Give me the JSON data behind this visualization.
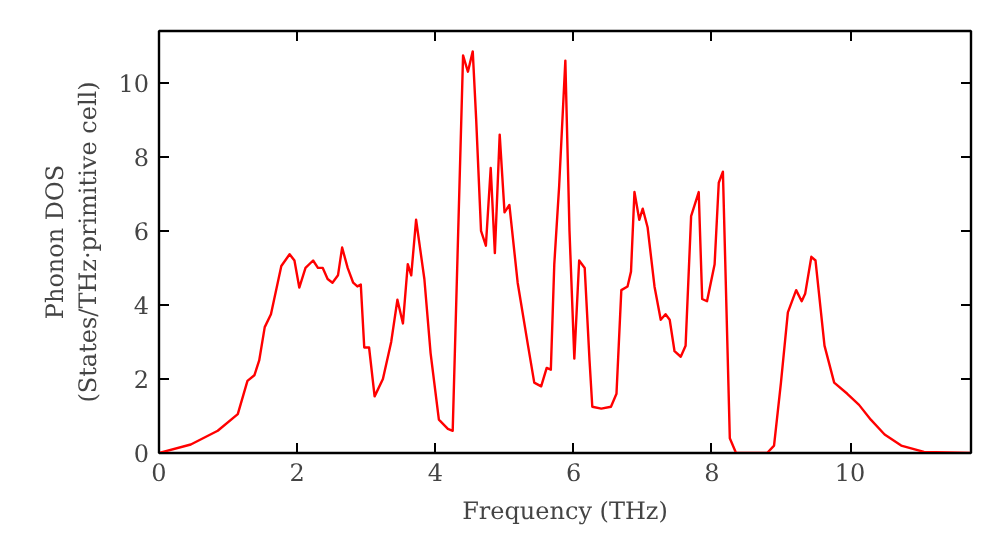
{
  "chart_data": {
    "type": "line",
    "xlabel": "Frequency (THz)",
    "ylabel": "Phonon DOS\n(States/THz·primitive cell)",
    "xlim": [
      0,
      11.75
    ],
    "ylim": [
      0,
      11.4
    ],
    "xticks": [
      0,
      2,
      4,
      6,
      8,
      10
    ],
    "yticks": [
      0,
      2,
      4,
      6,
      8,
      10
    ],
    "grid": false,
    "x": [
      0,
      0.46,
      0.85,
      1.14,
      1.28,
      1.38,
      1.45,
      1.53,
      1.62,
      1.77,
      1.89,
      1.96,
      2.03,
      2.12,
      2.23,
      2.3,
      2.37,
      2.44,
      2.51,
      2.59,
      2.65,
      2.73,
      2.81,
      2.87,
      2.92,
      2.97,
      3.04,
      3.12,
      3.24,
      3.36,
      3.45,
      3.53,
      3.6,
      3.65,
      3.72,
      3.84,
      3.93,
      4.05,
      4.18,
      4.25,
      4.4,
      4.47,
      4.54,
      4.59,
      4.66,
      4.73,
      4.8,
      4.86,
      4.93,
      5.0,
      5.07,
      5.19,
      5.34,
      5.43,
      5.53,
      5.61,
      5.67,
      5.72,
      5.79,
      5.88,
      5.94,
      6.01,
      6.08,
      6.16,
      6.23,
      6.27,
      6.4,
      6.54,
      6.62,
      6.69,
      6.78,
      6.83,
      6.88,
      6.95,
      7.0,
      7.07,
      7.17,
      7.26,
      7.33,
      7.39,
      7.46,
      7.55,
      7.62,
      7.7,
      7.81,
      7.86,
      7.93,
      8.04,
      8.1,
      8.16,
      8.26,
      8.35,
      8.8,
      8.9,
      9.0,
      9.1,
      9.22,
      9.3,
      9.35,
      9.44,
      9.5,
      9.63,
      9.77,
      9.96,
      10.13,
      10.3,
      10.5,
      10.74,
      11.07,
      11.75
    ],
    "series": [
      {
        "color": "#ff0000",
        "values": [
          0,
          0.23,
          0.6,
          1.05,
          1.95,
          2.1,
          2.5,
          3.4,
          3.75,
          5.05,
          5.37,
          5.2,
          4.47,
          5.0,
          5.2,
          5.0,
          5.0,
          4.7,
          4.6,
          4.8,
          5.55,
          5.0,
          4.6,
          4.5,
          4.55,
          2.85,
          2.85,
          1.53,
          2.0,
          3.0,
          4.14,
          3.5,
          5.1,
          4.8,
          6.3,
          4.7,
          2.7,
          0.9,
          0.65,
          0.6,
          10.74,
          10.3,
          10.85,
          9.0,
          6.0,
          5.6,
          7.7,
          5.4,
          8.6,
          6.5,
          6.7,
          4.6,
          2.9,
          1.9,
          1.8,
          2.3,
          2.25,
          5.1,
          7.2,
          10.6,
          6.0,
          2.55,
          5.2,
          5.0,
          2.5,
          1.25,
          1.2,
          1.25,
          1.6,
          4.4,
          4.5,
          4.9,
          7.05,
          6.3,
          6.6,
          6.1,
          4.5,
          3.6,
          3.75,
          3.6,
          2.75,
          2.6,
          2.9,
          6.4,
          7.05,
          4.16,
          4.1,
          5.1,
          7.3,
          7.6,
          0.4,
          0,
          0,
          0.2,
          1.9,
          3.8,
          4.4,
          4.1,
          4.3,
          5.3,
          5.2,
          2.9,
          1.9,
          1.6,
          1.3,
          0.9,
          0.5,
          0.2,
          0.03,
          0
        ]
      }
    ]
  }
}
